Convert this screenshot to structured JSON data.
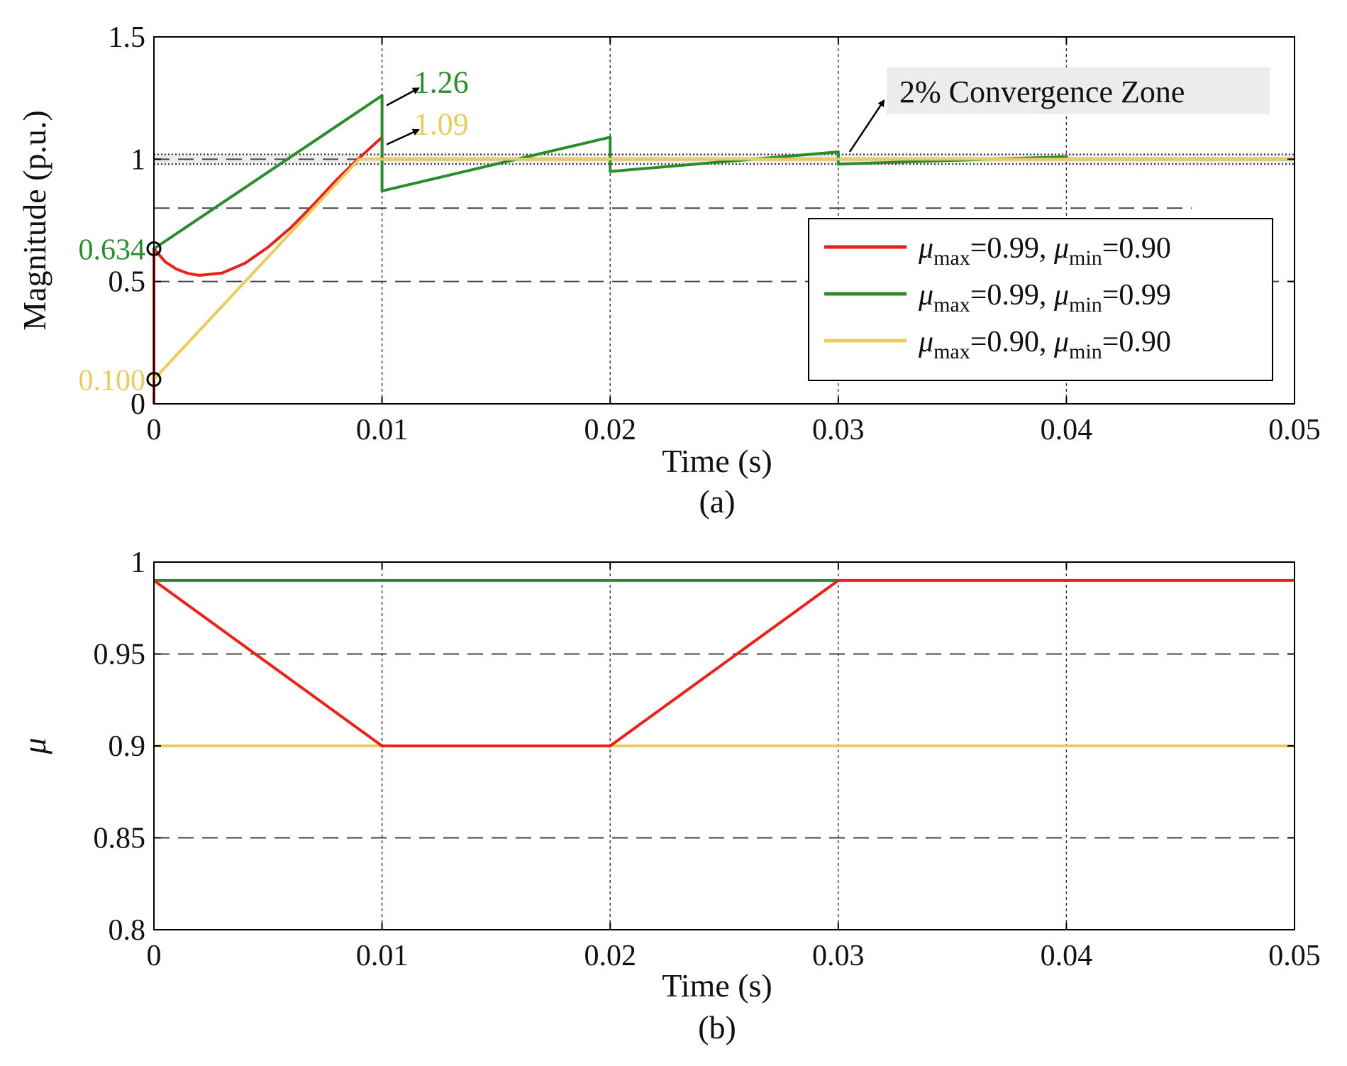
{
  "chart_data": [
    {
      "id": "a",
      "type": "line",
      "caption": "(a)",
      "xlabel": "Time (s)",
      "ylabel": "Magnitude (p.u.)",
      "xlim": [
        0,
        0.05
      ],
      "ylim": [
        0,
        1.5
      ],
      "xticks": [
        0,
        0.01,
        0.02,
        0.03,
        0.04,
        0.05
      ],
      "xtick_labels": [
        "0",
        "0.01",
        "0.02",
        "0.03",
        "0.04",
        "0.05"
      ],
      "yticks": [
        0,
        0.5,
        1,
        1.5
      ],
      "ytick_labels": [
        "0",
        "0.5",
        "1",
        "1.5"
      ],
      "grid": true,
      "reference_lines": {
        "dashed": [
          1.0,
          0.8,
          0.5
        ],
        "convergence_band": [
          0.98,
          1.02
        ]
      },
      "legend": {
        "placement": "lower-right",
        "entries": [
          {
            "mu": "μ",
            "max_sub": "max",
            "max_val": "=0.99, ",
            "min_sub": "min",
            "min_val": "=0.90",
            "color": "#e8221b"
          },
          {
            "mu": "μ",
            "max_sub": "max",
            "max_val": "=0.99, ",
            "min_sub": "min",
            "min_val": "=0.99",
            "color": "#2b8c2b"
          },
          {
            "mu": "μ",
            "max_sub": "max",
            "max_val": "=0.90, ",
            "min_sub": "min",
            "min_val": "=0.90",
            "color": "#e8cc5c"
          }
        ]
      },
      "annotations": {
        "peak_green": "1.26",
        "peak_yellow": "1.09",
        "start_green": "0.634",
        "start_yellow": "0.100",
        "zone_label": "2% Convergence Zone"
      },
      "series": [
        {
          "name": "μmax=0.99, μmin=0.90",
          "color": "#e8221b",
          "points": [
            [
              0,
              0
            ],
            [
              0,
              0.634
            ],
            [
              0.0005,
              0.58
            ],
            [
              0.001,
              0.55
            ],
            [
              0.0015,
              0.533
            ],
            [
              0.002,
              0.525
            ],
            [
              0.003,
              0.535
            ],
            [
              0.004,
              0.575
            ],
            [
              0.005,
              0.64
            ],
            [
              0.006,
              0.72
            ],
            [
              0.007,
              0.815
            ],
            [
              0.008,
              0.915
            ],
            [
              0.009,
              1.005
            ],
            [
              0.01,
              1.09
            ],
            [
              0.01,
              1.0
            ],
            [
              0.05,
              1.0
            ]
          ]
        },
        {
          "name": "μmax=0.99, μmin=0.99",
          "color": "#2b8c2b",
          "points": [
            [
              0,
              0.634
            ],
            [
              0.01,
              1.26
            ],
            [
              0.01,
              0.87
            ],
            [
              0.02,
              1.09
            ],
            [
              0.02,
              0.95
            ],
            [
              0.03,
              1.03
            ],
            [
              0.03,
              0.98
            ],
            [
              0.04,
              1.01
            ],
            [
              0.04,
              1.0
            ],
            [
              0.05,
              1.0
            ]
          ]
        },
        {
          "name": "μmax=0.90, μmin=0.90",
          "color": "#e8cc5c",
          "points": [
            [
              0,
              0.1
            ],
            [
              0.009,
              1.0
            ],
            [
              0.01,
              1.0
            ],
            [
              0.05,
              1.0
            ]
          ]
        }
      ]
    },
    {
      "id": "b",
      "type": "line",
      "caption": "(b)",
      "xlabel": "Time (s)",
      "ylabel": "μ",
      "xlim": [
        0,
        0.05
      ],
      "ylim": [
        0.8,
        1.0
      ],
      "xticks": [
        0,
        0.01,
        0.02,
        0.03,
        0.04,
        0.05
      ],
      "xtick_labels": [
        "0",
        "0.01",
        "0.02",
        "0.03",
        "0.04",
        "0.05"
      ],
      "yticks": [
        0.8,
        0.85,
        0.9,
        0.95,
        1.0
      ],
      "ytick_labels": [
        "0.8",
        "0.85",
        "0.9",
        "0.95",
        "1"
      ],
      "grid": true,
      "reference_lines": {
        "dashed": [
          0.85,
          0.9,
          0.95
        ]
      },
      "series": [
        {
          "name": "μmax=0.99, μmin=0.99",
          "color": "#2b8c2b",
          "points": [
            [
              0,
              0.99
            ],
            [
              0.03,
              0.99
            ]
          ]
        },
        {
          "name": "μmax=0.90, μmin=0.90",
          "color": "#e8cc5c",
          "points": [
            [
              0,
              0.9
            ],
            [
              0.05,
              0.9
            ]
          ]
        },
        {
          "name": "μmax=0.99, μmin=0.90",
          "color": "#e8221b",
          "points": [
            [
              0,
              0.99
            ],
            [
              0.01,
              0.9
            ],
            [
              0.02,
              0.9
            ],
            [
              0.03,
              0.99
            ],
            [
              0.05,
              0.99
            ]
          ]
        }
      ]
    }
  ]
}
